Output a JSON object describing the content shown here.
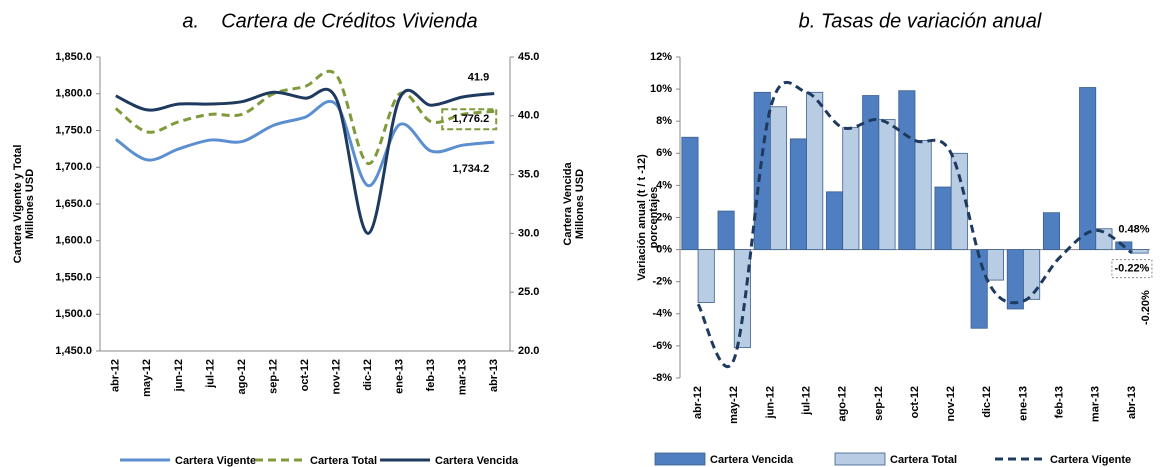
{
  "chart_data": [
    {
      "type": "line",
      "title": "a.    Cartera de Créditos Vivienda",
      "ylabel": [
        "Cartera Vigente y Total",
        "Millones USD"
      ],
      "y2label": [
        "Cartera Vencida",
        "Millones USD"
      ],
      "categories": [
        "abr-12",
        "may-12",
        "jun-12",
        "jul-12",
        "ago-12",
        "sep-12",
        "oct-12",
        "nov-12",
        "dic-12",
        "ene-13",
        "feb-13",
        "mar-13",
        "abr-13"
      ],
      "ylim": [
        1450,
        1850
      ],
      "yticks": [
        {
          "value": 1450,
          "label": "1,450.0"
        },
        {
          "value": 1500,
          "label": "1,500.0"
        },
        {
          "value": 1550,
          "label": "1,550.0"
        },
        {
          "value": 1600,
          "label": "1,600.0"
        },
        {
          "value": 1650,
          "label": "1,650.0"
        },
        {
          "value": 1700,
          "label": "1,700.0"
        },
        {
          "value": 1750,
          "label": "1,750.0"
        },
        {
          "value": 1800,
          "label": "1,800.0"
        },
        {
          "value": 1850,
          "label": "1,850.0"
        }
      ],
      "y2lim": [
        20,
        45
      ],
      "y2ticks": [
        {
          "value": 20,
          "label": "20.0"
        },
        {
          "value": 25,
          "label": "25.0"
        },
        {
          "value": 30,
          "label": "30.0"
        },
        {
          "value": 35,
          "label": "35.0"
        },
        {
          "value": 40,
          "label": "40.0"
        },
        {
          "value": 45,
          "label": "45.0"
        }
      ],
      "grid": false,
      "series": [
        {
          "name": "Cartera Vigente",
          "color": "#5b8fd0",
          "dash": false,
          "values": [
            1738,
            1710,
            1725,
            1737,
            1735,
            1757,
            1768,
            1785,
            1675,
            1758,
            1722,
            1730,
            1734.2
          ],
          "value_labels": [
            null,
            null,
            null,
            null,
            null,
            null,
            null,
            null,
            null,
            null,
            null,
            null,
            "1,734.2"
          ]
        },
        {
          "name": "Cartera Total",
          "color": "#7f9a3a",
          "dash": true,
          "values": [
            1780,
            1748,
            1762,
            1772,
            1772,
            1800,
            1810,
            1825,
            1705,
            1800,
            1762,
            1772,
            1776.2
          ],
          "value_labels": [
            null,
            null,
            null,
            null,
            null,
            null,
            null,
            null,
            null,
            null,
            null,
            null,
            "1,776.2"
          ]
        },
        {
          "name": "Cartera Vencida",
          "color": "#1f3a5f",
          "dash": false,
          "axis": "y2",
          "values": [
            41.7,
            40.5,
            41.0,
            41.0,
            41.2,
            42.0,
            41.5,
            41.4,
            30.0,
            41.5,
            40.9,
            41.6,
            41.9
          ]
        }
      ]
    },
    {
      "type": "bar",
      "title": "b. Tasas de variación anual",
      "ylabel": [
        "Variación anual (t / t -12)",
        "porcentajes"
      ],
      "categories": [
        "abr-12",
        "may-12",
        "jun-12",
        "jul-12",
        "ago-12",
        "sep-12",
        "oct-12",
        "nov-12",
        "dic-12",
        "ene-13",
        "feb-13",
        "mar-13",
        "abr-13"
      ],
      "ylim": [
        -8,
        12
      ],
      "yticks": [
        {
          "value": -8,
          "label": "-8%"
        },
        {
          "value": -6,
          "label": "-6%"
        },
        {
          "value": -4,
          "label": "-4%"
        },
        {
          "value": -2,
          "label": "-2%"
        },
        {
          "value": 0,
          "label": "0%"
        },
        {
          "value": 2,
          "label": "2%"
        },
        {
          "value": 4,
          "label": "4%"
        },
        {
          "value": 6,
          "label": "6%"
        },
        {
          "value": 8,
          "label": "8%"
        },
        {
          "value": 10,
          "label": "10%"
        },
        {
          "value": 12,
          "label": "12%"
        }
      ],
      "grid": false,
      "series": [
        {
          "name": "Cartera Vencida",
          "color": "#4f7fc0",
          "type": "bar",
          "values": [
            7.0,
            2.4,
            9.8,
            6.9,
            3.6,
            9.6,
            9.9,
            3.9,
            -4.9,
            -3.7,
            2.3,
            10.1,
            0.48
          ],
          "value_labels": [
            null,
            null,
            null,
            null,
            null,
            null,
            null,
            null,
            null,
            null,
            null,
            null,
            "0.48%"
          ]
        },
        {
          "name": "Cartera Total",
          "color": "#b8cce4",
          "type": "bar",
          "values": [
            -3.3,
            -6.1,
            8.9,
            9.8,
            7.6,
            8.1,
            6.8,
            6.0,
            -1.9,
            -3.1,
            0.0,
            1.3,
            -0.22
          ],
          "value_labels": [
            null,
            null,
            null,
            null,
            null,
            null,
            null,
            null,
            null,
            null,
            null,
            null,
            "-0.22%"
          ]
        },
        {
          "name": "Cartera Vigente",
          "color": "#1f3a5f",
          "type": "line",
          "dash": true,
          "values": [
            -3.4,
            -6.8,
            8.8,
            9.8,
            7.6,
            8.1,
            6.8,
            6.0,
            -1.9,
            -3.2,
            -0.5,
            1.2,
            -0.2
          ],
          "value_labels": [
            null,
            null,
            null,
            null,
            null,
            null,
            null,
            null,
            null,
            null,
            null,
            null,
            "-0.20%"
          ]
        }
      ]
    }
  ]
}
